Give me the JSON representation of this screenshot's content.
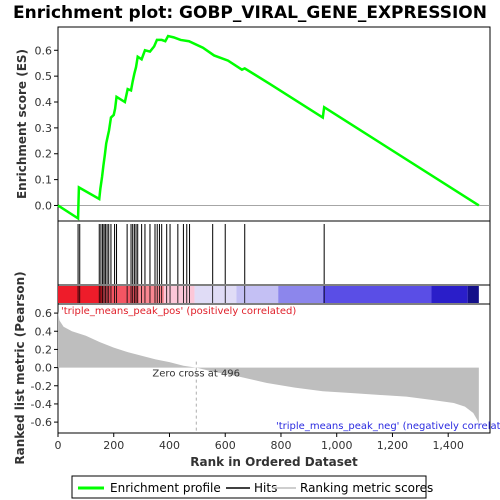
{
  "chart_data": {
    "title": "Enrichment plot: GOBP_VIRAL_GENE_EXPRESSION",
    "xlabel": "Rank in Ordered Dataset",
    "xlim": [
      0,
      1550
    ],
    "x_ticks": [
      0,
      200,
      400,
      600,
      800,
      1000,
      1200,
      1400
    ],
    "es_panel": {
      "type": "line",
      "ylabel": "Enrichment score (ES)",
      "ylim": [
        -0.06,
        0.69
      ],
      "y_ticks": [
        0.0,
        0.1,
        0.2,
        0.3,
        0.4,
        0.5,
        0.6
      ],
      "color": "#00ff00",
      "series_name": "Enrichment profile",
      "points": [
        [
          0,
          0.0
        ],
        [
          72,
          -0.05
        ],
        [
          75,
          0.07
        ],
        [
          148,
          0.025
        ],
        [
          152,
          0.065
        ],
        [
          158,
          0.11
        ],
        [
          163,
          0.155
        ],
        [
          168,
          0.195
        ],
        [
          173,
          0.24
        ],
        [
          178,
          0.265
        ],
        [
          183,
          0.29
        ],
        [
          190,
          0.34
        ],
        [
          200,
          0.35
        ],
        [
          205,
          0.375
        ],
        [
          210,
          0.42
        ],
        [
          240,
          0.4
        ],
        [
          250,
          0.45
        ],
        [
          262,
          0.445
        ],
        [
          268,
          0.48
        ],
        [
          274,
          0.51
        ],
        [
          280,
          0.535
        ],
        [
          286,
          0.575
        ],
        [
          300,
          0.565
        ],
        [
          312,
          0.6
        ],
        [
          330,
          0.595
        ],
        [
          345,
          0.615
        ],
        [
          355,
          0.64
        ],
        [
          372,
          0.64
        ],
        [
          385,
          0.635
        ],
        [
          395,
          0.655
        ],
        [
          415,
          0.65
        ],
        [
          440,
          0.64
        ],
        [
          470,
          0.635
        ],
        [
          520,
          0.61
        ],
        [
          560,
          0.58
        ],
        [
          610,
          0.56
        ],
        [
          660,
          0.525
        ],
        [
          670,
          0.53
        ],
        [
          760,
          0.47
        ],
        [
          950,
          0.34
        ],
        [
          955,
          0.38
        ],
        [
          1510,
          0.0
        ]
      ]
    },
    "hits_panel": {
      "series_name": "Hits",
      "positions": [
        72,
        78,
        148,
        154,
        160,
        165,
        170,
        176,
        182,
        190,
        203,
        210,
        248,
        262,
        268,
        274,
        280,
        286,
        300,
        312,
        330,
        348,
        356,
        364,
        372,
        390,
        402,
        430,
        450,
        462,
        472,
        555,
        600,
        670,
        955
      ]
    },
    "ranking_panel": {
      "type": "area",
      "series_name": "Ranking metric scores",
      "ylabel": "Ranked list metric (Pearson)",
      "ylim": [
        -0.72,
        0.7
      ],
      "y_ticks": [
        -0.6,
        -0.4,
        -0.2,
        0.0,
        0.2,
        0.4,
        0.6
      ],
      "fill_color": "#bebebe",
      "points": [
        [
          0,
          0.62
        ],
        [
          5,
          0.52
        ],
        [
          20,
          0.45
        ],
        [
          50,
          0.4
        ],
        [
          100,
          0.35
        ],
        [
          150,
          0.28
        ],
        [
          200,
          0.22
        ],
        [
          250,
          0.17
        ],
        [
          300,
          0.13
        ],
        [
          350,
          0.09
        ],
        [
          400,
          0.06
        ],
        [
          450,
          0.02
        ],
        [
          496,
          0.0
        ],
        [
          550,
          -0.04
        ],
        [
          650,
          -0.1
        ],
        [
          750,
          -0.17
        ],
        [
          850,
          -0.22
        ],
        [
          950,
          -0.26
        ],
        [
          1050,
          -0.28
        ],
        [
          1150,
          -0.3
        ],
        [
          1250,
          -0.32
        ],
        [
          1350,
          -0.36
        ],
        [
          1420,
          -0.39
        ],
        [
          1460,
          -0.43
        ],
        [
          1490,
          -0.5
        ],
        [
          1505,
          -0.58
        ],
        [
          1510,
          -0.62
        ],
        [
          1510,
          0.0
        ]
      ],
      "zero_cross_label": "Zero cross at 496",
      "zero_cross_x": 496,
      "pos_label": "'triple_means_peak_pos' (positively correlated)",
      "neg_label": "'triple_means_peak_neg' (negatively correlated)"
    },
    "heat_bar": {
      "segments": [
        {
          "from": 0,
          "to": 160,
          "color": "#ee1c2a"
        },
        {
          "from": 160,
          "to": 290,
          "color": "#f45563"
        },
        {
          "from": 290,
          "to": 380,
          "color": "#f98791"
        },
        {
          "from": 380,
          "to": 490,
          "color": "#fcc7d8"
        },
        {
          "from": 490,
          "to": 640,
          "color": "#e0dcf6"
        },
        {
          "from": 640,
          "to": 790,
          "color": "#c4c0f4"
        },
        {
          "from": 790,
          "to": 950,
          "color": "#8c86ec"
        },
        {
          "from": 950,
          "to": 1340,
          "color": "#5a4ee6"
        },
        {
          "from": 1340,
          "to": 1470,
          "color": "#2a1ec9"
        },
        {
          "from": 1470,
          "to": 1510,
          "color": "#14108a"
        }
      ]
    },
    "legend": {
      "position": "bottom",
      "entries": [
        {
          "label": "Enrichment profile",
          "color": "#00ff00"
        },
        {
          "label": "Hits",
          "color": "#000000"
        },
        {
          "label": "Ranking metric scores",
          "color": "#bebebe"
        }
      ]
    }
  }
}
